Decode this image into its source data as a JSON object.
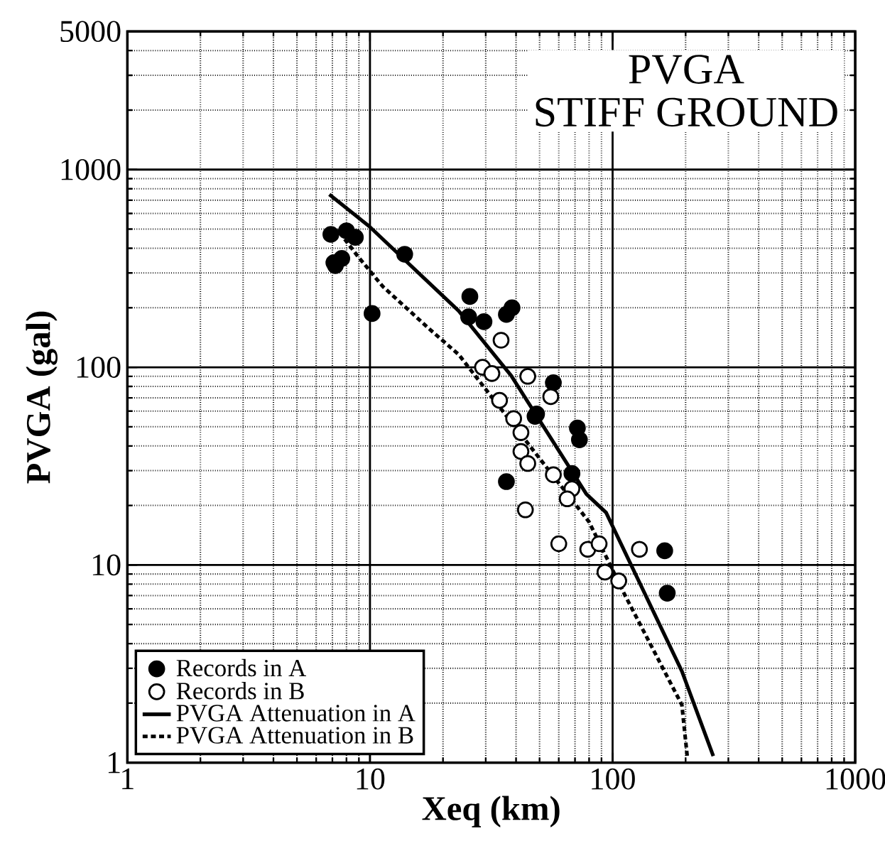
{
  "chart_data": {
    "type": "scatter",
    "title": "PVGA",
    "subtitle": "STIFF GROUND",
    "xlabel": "Xeq (km)",
    "ylabel": "PVGA (gal)",
    "log": "xy",
    "grid": true,
    "legend": "bottom left",
    "xlim": [
      1,
      1000
    ],
    "ylim": [
      1,
      5000
    ],
    "xticks": [
      1,
      10,
      100,
      1000
    ],
    "yticks": [
      1,
      10,
      100,
      1000,
      5000
    ],
    "series": [
      {
        "name": "Records in A",
        "marker": "circle",
        "color": "#000000",
        "x": [
          7.2,
          7.65,
          8.0,
          8.7,
          6.9,
          7.1,
          10.2,
          13.9,
          25.8,
          25.5,
          29.5,
          36.5,
          38.5,
          48.6,
          47.9,
          57,
          71.6,
          73,
          68,
          36.5,
          164,
          168
        ],
        "values": [
          327,
          355,
          490,
          454,
          470,
          338,
          187,
          373,
          228,
          180,
          170,
          185,
          200,
          58,
          56.5,
          83.5,
          49.3,
          43,
          29,
          26.4,
          11.8,
          7.2
        ]
      },
      {
        "name": "Records in B",
        "marker": "circle",
        "color": "#ffffff",
        "x": [
          34.7,
          29.1,
          31.8,
          44.7,
          34.2,
          55.6,
          39.1,
          41.9,
          41.9,
          44.7,
          57,
          68,
          65,
          43.7,
          60,
          79,
          88,
          93,
          106,
          129
        ],
        "values": [
          137,
          100,
          93,
          90,
          68,
          71,
          55,
          46.7,
          37.5,
          32.6,
          28.6,
          24.3,
          21.6,
          19,
          12.8,
          12,
          12.8,
          9.2,
          8.3,
          12
        ]
      },
      {
        "name": "PVGA Attenuation in A",
        "type": "line",
        "marker": "none",
        "line_style": "solid",
        "color": "#000000",
        "x": [
          6.8,
          9.9,
          23.2,
          38.2,
          78,
          94,
          193,
          260
        ],
        "values": [
          748,
          518,
          193,
          90.6,
          22.8,
          18.4,
          2.9,
          1.08
        ]
      },
      {
        "name": "PVGA Attenuation in B",
        "type": "line",
        "marker": "none",
        "line_style": "dashed",
        "color": "#000000",
        "x": [
          7.5,
          8.9,
          11.3,
          17.7,
          23.2,
          80,
          112,
          193,
          203
        ],
        "values": [
          480,
          365,
          256,
          155,
          116,
          16.5,
          7.1,
          1.96,
          1.08
        ]
      }
    ]
  }
}
